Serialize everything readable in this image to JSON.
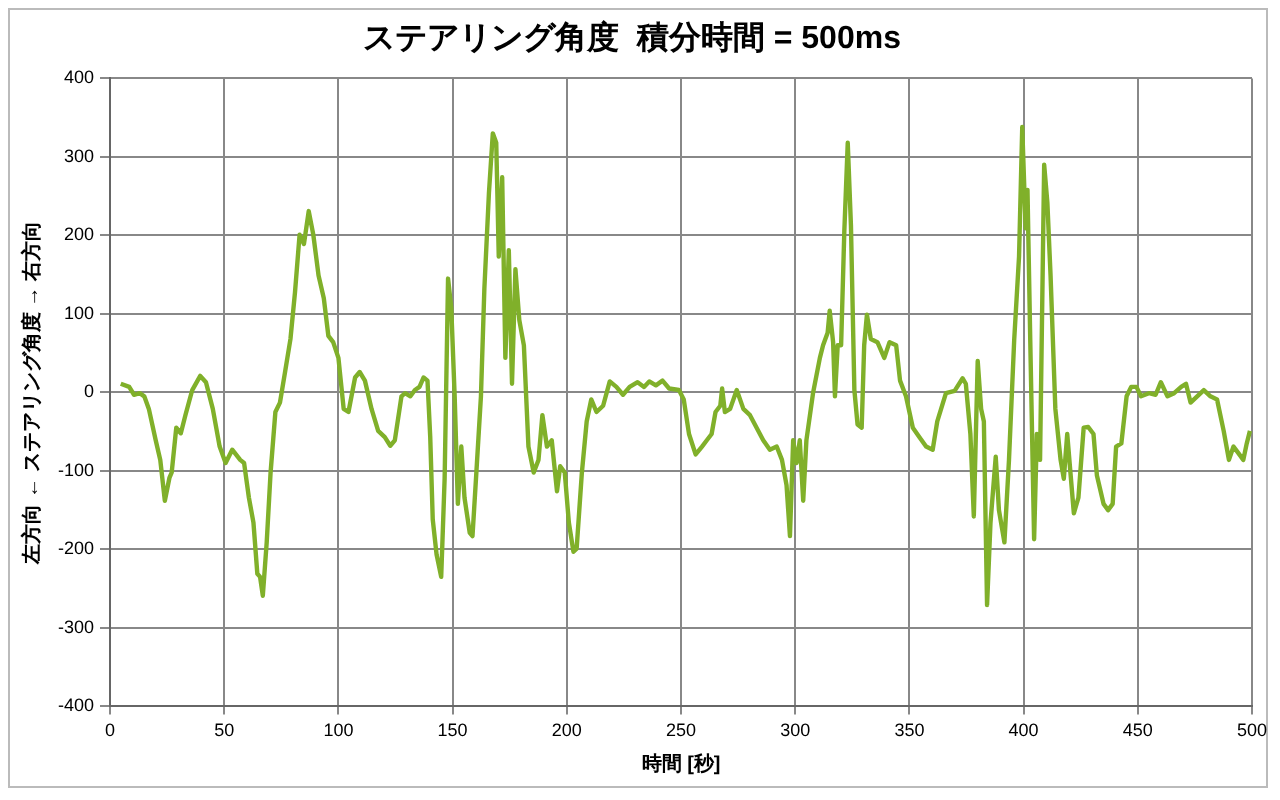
{
  "chart_data": {
    "type": "line",
    "title": "ステアリング角度  積分時間 = 500ms",
    "xlabel": "時間 [秒]",
    "ylabel": "左方向 ← ステアリング角度 → 右方向",
    "x": [
      4.7,
      8.4,
      10.5,
      13,
      15,
      17,
      20,
      22,
      24,
      26,
      27,
      29,
      31,
      33,
      36,
      39.5,
      42,
      45,
      48,
      50.6,
      53.5,
      57,
      58.7,
      60.8,
      62.8,
      64.5,
      65.7,
      66.9,
      68.6,
      70.3,
      72.4,
      74.4,
      76.7,
      79,
      81,
      83,
      84.9,
      87,
      89,
      91.3,
      93.6,
      95.6,
      97.7,
      100,
      102.3,
      104.4,
      107.3,
      109.3,
      111.6,
      114.5,
      117.4,
      120.3,
      122.7,
      124.7,
      127.6,
      129.2,
      131.5,
      133.5,
      135.5,
      137.3,
      139,
      140.2,
      141.3,
      143,
      145,
      146.5,
      148,
      149.4,
      150.9,
      152.3,
      153.8,
      155.2,
      157.5,
      158.7,
      160.4,
      162.4,
      163.9,
      165.9,
      167.6,
      169.1,
      170.2,
      171.7,
      173.1,
      174.6,
      176,
      177.5,
      179.2,
      181.2,
      183.2,
      185.5,
      187.6,
      189.3,
      191.3,
      193.4,
      195.7,
      197.1,
      199.1,
      200.9,
      202.9,
      204.3,
      206.6,
      208.7,
      210.7,
      213,
      215.9,
      218.8,
      221.7,
      224.6,
      227.5,
      231,
      233.8,
      236.1,
      239,
      241.9,
      244.8,
      249.1,
      251.2,
      253.5,
      256.4,
      259.2,
      261.3,
      263.4,
      265.1,
      267.2,
      268,
      269.2,
      271.5,
      274.4,
      277.3,
      280.2,
      283.1,
      286,
      288.9,
      291.9,
      294.2,
      296.2,
      297.7,
      299.1,
      300.6,
      302,
      303.5,
      304.9,
      307.8,
      310.8,
      312.2,
      314.2,
      315.1,
      316.6,
      317.4,
      318.6,
      320.1,
      321.5,
      323,
      324.4,
      325.9,
      327.3,
      329.1,
      330.2,
      331.4,
      333.1,
      336,
      339,
      341.3,
      344.2,
      345.9,
      348.5,
      351.5,
      354.4,
      357.3,
      360.2,
      362.2,
      366,
      369.8,
      373.3,
      374.7,
      376.7,
      378.2,
      379.9,
      381.4,
      382.6,
      384,
      385.5,
      387.8,
      389.2,
      391.6,
      393.6,
      395.9,
      398,
      399.4,
      400.9,
      401.7,
      402.9,
      404.6,
      405.8,
      407.2,
      409,
      410.4,
      411.8,
      413.9,
      416.2,
      417.6,
      419.1,
      420.5,
      422,
      424,
      426.3,
      428.3,
      430.6,
      432.1,
      435,
      437,
      439,
      440.5,
      442.8,
      445.1,
      447.1,
      449.4,
      451.4,
      454.9,
      457.8,
      460.1,
      463,
      465.9,
      469,
      471.1,
      473.1,
      476,
      478.9,
      481.8,
      484.7,
      487.6,
      489.9,
      491.9,
      494.2,
      496.2,
      497.7,
      499.1
    ],
    "values": [
      11,
      7,
      -3,
      -1,
      -5,
      -21,
      -61,
      -86,
      -138,
      -109,
      -102,
      -45,
      -52,
      -29,
      3,
      21,
      13,
      -21,
      -69,
      -90,
      -73,
      -86,
      -90,
      -134,
      -166,
      -231,
      -235,
      -259,
      -191,
      -102,
      -25,
      -13,
      27,
      68,
      128,
      201,
      189,
      231,
      201,
      149,
      120,
      72,
      64,
      44,
      -21,
      -25,
      19,
      26,
      15,
      -21,
      -49,
      -57,
      -68,
      -61,
      -5,
      -1,
      -5,
      3,
      7,
      19,
      15,
      -57,
      -162,
      -207,
      -235,
      -110,
      145,
      108,
      -5,
      -142,
      -69,
      -134,
      -179,
      -183,
      -102,
      -5,
      132,
      254,
      330,
      318,
      173,
      274,
      44,
      181,
      11,
      157,
      92,
      60,
      -69,
      -102,
      -86,
      -29,
      -69,
      -61,
      -126,
      -94,
      -102,
      -166,
      -203,
      -199,
      -102,
      -37,
      -9,
      -25,
      -17,
      14,
      7,
      -3,
      7,
      13,
      7,
      14,
      9,
      15,
      5,
      3,
      -9,
      -53,
      -79,
      -69,
      -61,
      -53,
      -25,
      -17,
      5,
      -25,
      -21,
      3,
      -21,
      -29,
      -45,
      -61,
      -73,
      -69,
      -86,
      -118,
      -183,
      -61,
      -90,
      -61,
      -138,
      -61,
      -1,
      44,
      60,
      76,
      104,
      64,
      -5,
      60,
      60,
      205,
      318,
      213,
      3,
      -41,
      -45,
      60,
      99,
      68,
      64,
      44,
      64,
      60,
      15,
      -5,
      -45,
      -57,
      -69,
      -73,
      -37,
      -1,
      2,
      18,
      11,
      -53,
      -158,
      40,
      -21,
      -37,
      -271,
      -166,
      -82,
      -150,
      -191,
      -86,
      68,
      173,
      338,
      209,
      258,
      68,
      -187,
      -53,
      -86,
      290,
      242,
      149,
      -21,
      -86,
      -110,
      -53,
      -102,
      -154,
      -134,
      -45,
      -44,
      -53,
      -106,
      -142,
      -150,
      -142,
      -69,
      -65,
      -5,
      7,
      7,
      -5,
      -1,
      -3,
      13,
      -5,
      -1,
      7,
      11,
      -13,
      -5,
      3,
      -5,
      -9,
      -49,
      -86,
      -69,
      -78,
      -86,
      -65,
      -49
    ],
    "color": "#80b02a",
    "xlim": [
      0,
      500
    ],
    "xticks": [
      0,
      50,
      100,
      150,
      200,
      250,
      300,
      350,
      400,
      450,
      500
    ],
    "ylim": [
      -400,
      400
    ],
    "yticks": [
      -400,
      -300,
      -200,
      -100,
      0,
      100,
      200,
      300,
      400
    ],
    "grid": true
  }
}
